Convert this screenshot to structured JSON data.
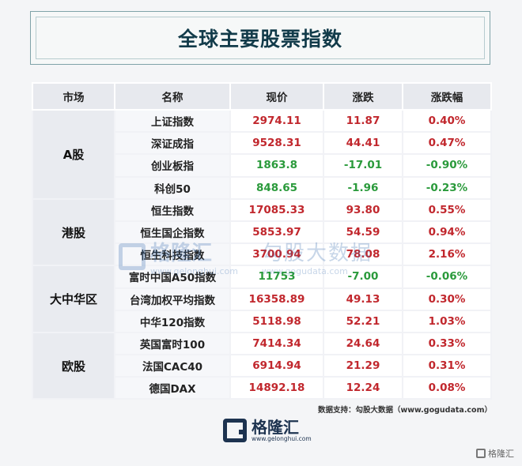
{
  "title": "全球主要股票指数",
  "headers": [
    "市场",
    "名称",
    "现价",
    "涨跌",
    "涨跌幅"
  ],
  "groups": [
    {
      "market": "A股",
      "rows": [
        {
          "name": "上证指数",
          "price": "2974.11",
          "change": "11.87",
          "pct": "0.40%",
          "dir": "up"
        },
        {
          "name": "深证成指",
          "price": "9528.31",
          "change": "44.41",
          "pct": "0.47%",
          "dir": "up"
        },
        {
          "name": "创业板指",
          "price": "1863.8",
          "change": "-17.01",
          "pct": "-0.90%",
          "dir": "down"
        },
        {
          "name": "科创50",
          "price": "848.65",
          "change": "-1.96",
          "pct": "-0.23%",
          "dir": "down"
        }
      ]
    },
    {
      "market": "港股",
      "rows": [
        {
          "name": "恒生指数",
          "price": "17085.33",
          "change": "93.80",
          "pct": "0.55%",
          "dir": "up"
        },
        {
          "name": "恒生国企指数",
          "price": "5853.97",
          "change": "54.59",
          "pct": "0.94%",
          "dir": "up"
        },
        {
          "name": "恒生科技指数",
          "price": "3700.94",
          "change": "78.08",
          "pct": "2.16%",
          "dir": "up"
        }
      ]
    },
    {
      "market": "大中华区",
      "rows": [
        {
          "name": "富时中国A50指数",
          "price": "11753",
          "change": "-7.00",
          "pct": "-0.06%",
          "dir": "down"
        },
        {
          "name": "台湾加权平均指数",
          "price": "16358.89",
          "change": "49.13",
          "pct": "0.30%",
          "dir": "up"
        },
        {
          "name": "中华120指数",
          "price": "5118.98",
          "change": "52.21",
          "pct": "1.03%",
          "dir": "up"
        }
      ]
    },
    {
      "market": "欧股",
      "rows": [
        {
          "name": "英国富时100",
          "price": "7414.34",
          "change": "24.64",
          "pct": "0.33%",
          "dir": "up"
        },
        {
          "name": "法国CAC40",
          "price": "6914.94",
          "change": "21.29",
          "pct": "0.31%",
          "dir": "up"
        },
        {
          "name": "德国DAX",
          "price": "14892.18",
          "change": "12.24",
          "pct": "0.08%",
          "dir": "up"
        }
      ]
    }
  ],
  "source": "数据支持：勾股大数据（www.gogudata.com）",
  "watermark": {
    "brand": "格隆汇",
    "brand_url": "www.gelonghui.com",
    "partner": "勾股大数据",
    "partner_url": "www.gogudata.com"
  },
  "footer": {
    "brand": "格隆汇",
    "url": "www.gelonghui.com"
  },
  "corner_mark": "格隆汇",
  "colors": {
    "up": "#c1272d",
    "down": "#2a9a3b",
    "title": "#123b4a"
  }
}
